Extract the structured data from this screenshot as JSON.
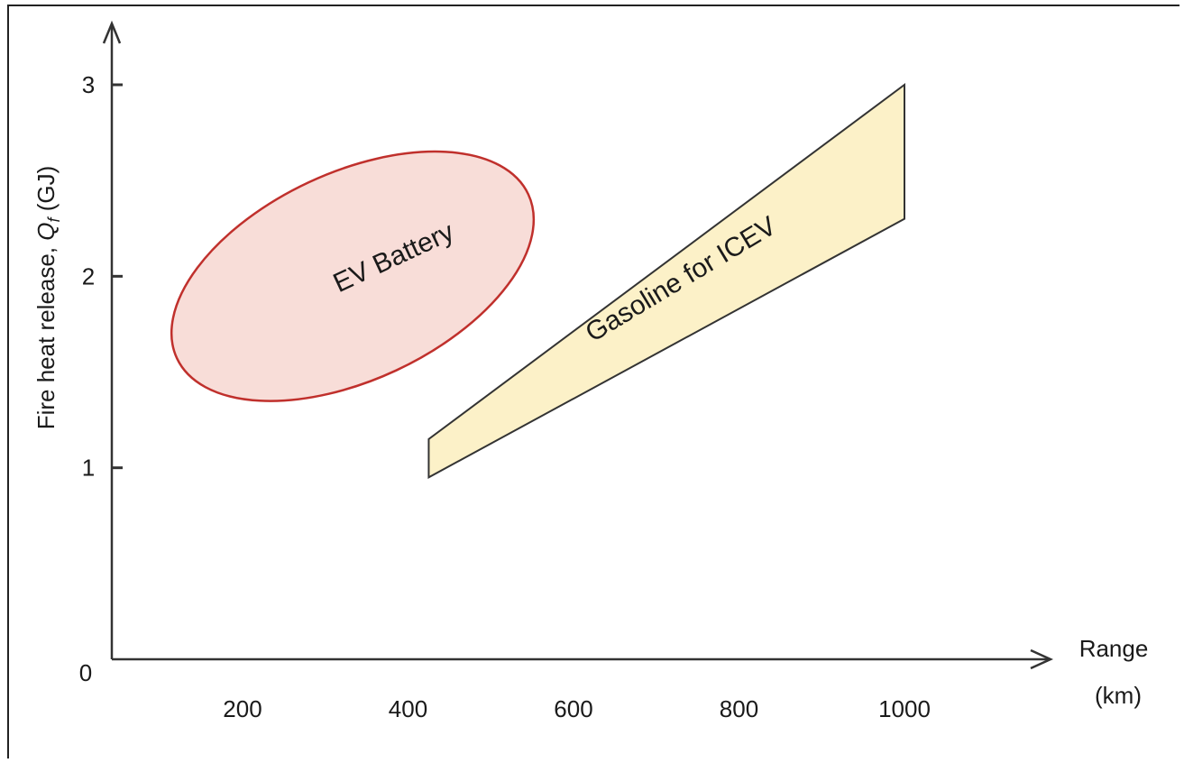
{
  "chart_data": {
    "type": "area",
    "title": "",
    "xlabel_lines": [
      "Range",
      "(km)"
    ],
    "ylabel_prefix": "Fire heat release, ",
    "ylabel_symbol": "Q",
    "ylabel_subscript": "f",
    "ylabel_suffix": " (GJ)",
    "x_ticks": [
      "200",
      "400",
      "600",
      "800",
      "1000"
    ],
    "y_ticks": [
      "0",
      "1",
      "2",
      "3"
    ],
    "x_tick_values": [
      200,
      400,
      600,
      800,
      1000
    ],
    "y_tick_values": [
      0,
      1,
      2,
      3
    ],
    "xlim": [
      50,
      1150
    ],
    "ylim": [
      0,
      3.3
    ],
    "grid": false,
    "regions": [
      {
        "name": "EV Battery",
        "shape": "ellipse",
        "center": [
          333,
          2.0
        ],
        "x_extent": [
          65,
          600
        ],
        "y_extent": [
          1.31,
          2.68
        ],
        "fill": "#f8ddd8",
        "stroke": "#c0302c"
      },
      {
        "name": "Gasoline for ICEV",
        "shape": "polygon",
        "points": [
          [
            425,
            0.95
          ],
          [
            425,
            1.15
          ],
          [
            1000,
            3.0
          ],
          [
            1000,
            2.3
          ]
        ],
        "fill": "#fcf1c8",
        "stroke": "#333333"
      }
    ],
    "colors": {
      "axis": "#333333",
      "text": "#1a1a1a"
    }
  }
}
